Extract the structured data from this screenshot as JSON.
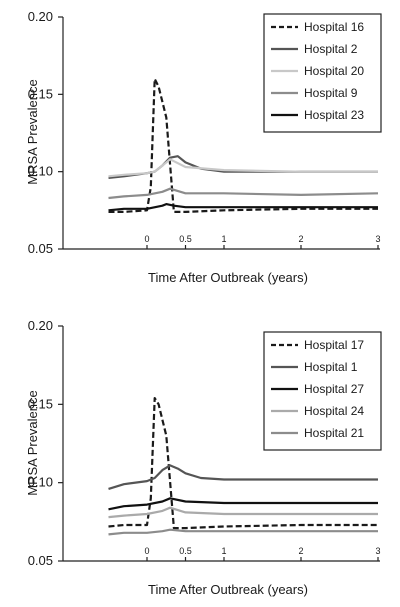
{
  "chart_data": [
    {
      "type": "line",
      "xlabel": "Time After Outbreak (years)",
      "ylabel": "MRSA Prevalence",
      "xlim": [
        -0.5,
        3
      ],
      "ylim": [
        0.05,
        0.2
      ],
      "xticks": [
        0,
        0.5,
        1,
        2,
        3
      ],
      "xtick_labels": [
        "0",
        "0.5",
        "1",
        "2",
        "3"
      ],
      "yticks": [
        0.05,
        0.1,
        0.15,
        0.2
      ],
      "ytick_labels": [
        "0.05",
        "0.10",
        "0.15",
        "0.20"
      ],
      "legend_position": "top-right",
      "series": [
        {
          "name": "Hospital 16",
          "color": "#1a1a1a",
          "dash": "dashed",
          "x": [
            -0.5,
            -0.3,
            0,
            0.05,
            0.1,
            0.15,
            0.25,
            0.35,
            0.5,
            1,
            2,
            3
          ],
          "y": [
            0.074,
            0.074,
            0.075,
            0.09,
            0.16,
            0.155,
            0.135,
            0.074,
            0.074,
            0.075,
            0.076,
            0.076
          ]
        },
        {
          "name": "Hospital 2",
          "color": "#555555",
          "dash": "solid",
          "x": [
            -0.5,
            -0.3,
            0,
            0.1,
            0.2,
            0.3,
            0.4,
            0.5,
            0.7,
            1,
            2,
            3
          ],
          "y": [
            0.096,
            0.097,
            0.099,
            0.1,
            0.104,
            0.109,
            0.11,
            0.106,
            0.102,
            0.1,
            0.1,
            0.1
          ]
        },
        {
          "name": "Hospital 20",
          "color": "#c8c8c8",
          "dash": "solid",
          "x": [
            -0.5,
            -0.3,
            0,
            0.1,
            0.2,
            0.3,
            0.5,
            1,
            2,
            3
          ],
          "y": [
            0.097,
            0.098,
            0.099,
            0.1,
            0.104,
            0.108,
            0.103,
            0.101,
            0.1,
            0.1
          ]
        },
        {
          "name": "Hospital 9",
          "color": "#8c8c8c",
          "dash": "solid",
          "x": [
            -0.5,
            -0.3,
            0,
            0.2,
            0.3,
            0.5,
            1,
            2,
            3
          ],
          "y": [
            0.083,
            0.084,
            0.085,
            0.087,
            0.089,
            0.086,
            0.086,
            0.085,
            0.086
          ]
        },
        {
          "name": "Hospital 23",
          "color": "#111111",
          "dash": "solid",
          "x": [
            -0.5,
            -0.3,
            0,
            0.2,
            0.25,
            0.35,
            0.5,
            1,
            2,
            3
          ],
          "y": [
            0.075,
            0.076,
            0.076,
            0.078,
            0.079,
            0.078,
            0.077,
            0.077,
            0.077,
            0.077
          ]
        }
      ]
    },
    {
      "type": "line",
      "xlabel": "Time After Outbreak (years)",
      "ylabel": "MRSA Prevalence",
      "xlim": [
        -0.5,
        3
      ],
      "ylim": [
        0.05,
        0.2
      ],
      "xticks": [
        0,
        0.5,
        1,
        2,
        3
      ],
      "xtick_labels": [
        "0",
        "0.5",
        "1",
        "2",
        "3"
      ],
      "yticks": [
        0.05,
        0.1,
        0.15,
        0.2
      ],
      "ytick_labels": [
        "0.05",
        "0.10",
        "0.15",
        "0.20"
      ],
      "legend_position": "top-right",
      "series": [
        {
          "name": "Hospital 17",
          "color": "#1a1a1a",
          "dash": "dashed",
          "x": [
            -0.5,
            -0.3,
            0,
            0.05,
            0.1,
            0.15,
            0.25,
            0.35,
            0.5,
            1,
            2,
            3
          ],
          "y": [
            0.072,
            0.073,
            0.073,
            0.09,
            0.154,
            0.15,
            0.13,
            0.071,
            0.071,
            0.072,
            0.073,
            0.073
          ]
        },
        {
          "name": "Hospital 1",
          "color": "#555555",
          "dash": "solid",
          "x": [
            -0.5,
            -0.3,
            0,
            0.1,
            0.2,
            0.3,
            0.4,
            0.5,
            0.7,
            1,
            2,
            3
          ],
          "y": [
            0.096,
            0.099,
            0.101,
            0.103,
            0.108,
            0.111,
            0.109,
            0.106,
            0.103,
            0.102,
            0.102,
            0.102
          ]
        },
        {
          "name": "Hospital 27",
          "color": "#111111",
          "dash": "solid",
          "x": [
            -0.5,
            -0.3,
            0,
            0.2,
            0.3,
            0.5,
            1,
            2,
            3
          ],
          "y": [
            0.083,
            0.085,
            0.086,
            0.088,
            0.09,
            0.088,
            0.087,
            0.087,
            0.087
          ]
        },
        {
          "name": "Hospital 24",
          "color": "#aaaaaa",
          "dash": "solid",
          "x": [
            -0.5,
            -0.3,
            0,
            0.2,
            0.3,
            0.5,
            1,
            2,
            3
          ],
          "y": [
            0.078,
            0.079,
            0.08,
            0.082,
            0.084,
            0.081,
            0.08,
            0.08,
            0.08
          ]
        },
        {
          "name": "Hospital 21",
          "color": "#8c8c8c",
          "dash": "solid",
          "x": [
            -0.5,
            -0.3,
            0,
            0.2,
            0.3,
            0.5,
            1,
            2,
            3
          ],
          "y": [
            0.067,
            0.068,
            0.068,
            0.069,
            0.07,
            0.069,
            0.069,
            0.069,
            0.069
          ]
        }
      ]
    }
  ]
}
